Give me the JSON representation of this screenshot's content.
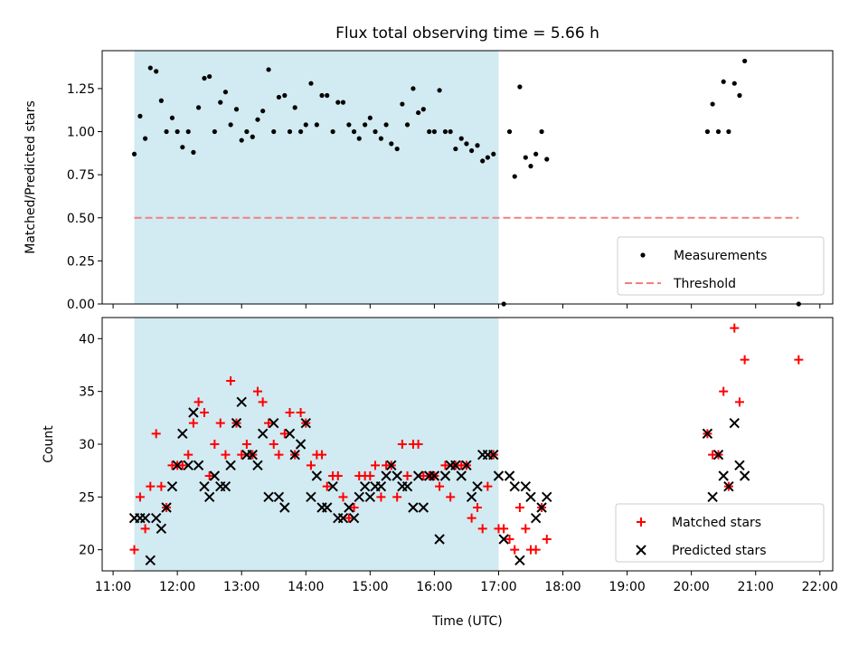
{
  "figure": {
    "title": "Flux total observing time = 5.66 h",
    "xlabel": "Time (UTC)",
    "x_tick_labels": [
      "11:00",
      "12:00",
      "13:00",
      "14:00",
      "15:00",
      "16:00",
      "17:00",
      "18:00",
      "19:00",
      "20:00",
      "21:00",
      "22:00"
    ],
    "shade_color": "#add8e6"
  },
  "chart_data": [
    {
      "type": "scatter",
      "ylabel": "Matched/Predicted stars",
      "xlim": [
        10.83,
        22.2
      ],
      "ylim": [
        0,
        1.47
      ],
      "x_ticks": [
        11,
        12,
        13,
        14,
        15,
        16,
        17,
        18,
        19,
        20,
        21,
        22
      ],
      "y_ticks": [
        0,
        0.25,
        0.5,
        0.75,
        1.0,
        1.25
      ],
      "y_tick_labels": [
        "0.00",
        "0.25",
        "0.50",
        "0.75",
        "1.00",
        "1.25"
      ],
      "shaded_interval": [
        11.33,
        17.0
      ],
      "legend": {
        "position": "lower-right",
        "entries": [
          "Measurements",
          "Threshold"
        ]
      },
      "series": [
        {
          "name": "Measurements",
          "marker": "dot",
          "color": "#000000",
          "x": [
            11.33,
            11.42,
            11.5,
            11.58,
            11.67,
            11.75,
            11.83,
            11.92,
            12.0,
            12.08,
            12.17,
            12.25,
            12.33,
            12.42,
            12.5,
            12.58,
            12.67,
            12.75,
            12.83,
            12.92,
            13.0,
            13.08,
            13.17,
            13.25,
            13.33,
            13.42,
            13.5,
            13.58,
            13.67,
            13.75,
            13.83,
            13.92,
            14.0,
            14.08,
            14.17,
            14.25,
            14.33,
            14.42,
            14.5,
            14.58,
            14.67,
            14.75,
            14.83,
            14.92,
            15.0,
            15.08,
            15.17,
            15.25,
            15.33,
            15.42,
            15.5,
            15.58,
            15.67,
            15.75,
            15.83,
            15.92,
            16.0,
            16.08,
            16.17,
            16.25,
            16.33,
            16.42,
            16.5,
            16.58,
            16.67,
            16.75,
            16.83,
            16.92,
            17.08,
            17.17,
            17.25,
            17.33,
            17.42,
            17.5,
            17.58,
            17.67,
            17.75,
            20.25,
            20.33,
            20.42,
            20.5,
            20.58,
            20.67,
            20.75,
            20.83,
            21.67
          ],
          "y": [
            0.87,
            1.09,
            0.96,
            1.37,
            1.35,
            1.18,
            1.0,
            1.08,
            1.0,
            0.91,
            1.0,
            0.88,
            1.14,
            1.31,
            1.32,
            1.0,
            1.17,
            1.23,
            1.04,
            1.13,
            0.95,
            1.0,
            0.97,
            1.07,
            1.12,
            1.36,
            1.0,
            1.2,
            1.21,
            1.0,
            1.14,
            1.0,
            1.04,
            1.28,
            1.04,
            1.21,
            1.21,
            1.0,
            1.17,
            1.17,
            1.04,
            1.0,
            0.96,
            1.04,
            1.08,
            1.0,
            0.96,
            1.04,
            0.93,
            0.9,
            1.16,
            1.04,
            1.25,
            1.11,
            1.13,
            1.0,
            1.0,
            1.24,
            1.0,
            1.0,
            0.9,
            0.96,
            0.93,
            0.89,
            0.92,
            0.83,
            0.85,
            0.87,
            0.0,
            1.0,
            0.74,
            1.26,
            0.85,
            0.8,
            0.87,
            1.0,
            0.84,
            1.0,
            1.16,
            1.0,
            1.29,
            1.0,
            1.28,
            1.21,
            1.41,
            0.0
          ]
        },
        {
          "name": "Threshold",
          "marker": "dashed-line",
          "color": "#f08080",
          "x": [
            11.33,
            21.67
          ],
          "y": [
            0.5,
            0.5
          ]
        }
      ]
    },
    {
      "type": "scatter",
      "ylabel": "Count",
      "xlim": [
        10.83,
        22.2
      ],
      "ylim": [
        18,
        42
      ],
      "x_ticks": [
        11,
        12,
        13,
        14,
        15,
        16,
        17,
        18,
        19,
        20,
        21,
        22
      ],
      "y_ticks": [
        20,
        25,
        30,
        35,
        40
      ],
      "y_tick_labels": [
        "20",
        "25",
        "30",
        "35",
        "40"
      ],
      "shaded_interval": [
        11.33,
        17.0
      ],
      "legend": {
        "position": "lower-right",
        "entries": [
          "Matched stars",
          "Predicted stars"
        ]
      },
      "series": [
        {
          "name": "Matched stars",
          "marker": "plus",
          "color": "#ff0000",
          "x": [
            11.33,
            11.42,
            11.5,
            11.58,
            11.67,
            11.75,
            11.83,
            11.92,
            12.0,
            12.08,
            12.17,
            12.25,
            12.33,
            12.42,
            12.5,
            12.58,
            12.67,
            12.75,
            12.83,
            12.92,
            13.0,
            13.08,
            13.17,
            13.25,
            13.33,
            13.42,
            13.5,
            13.58,
            13.67,
            13.75,
            13.83,
            13.92,
            14.0,
            14.08,
            14.17,
            14.25,
            14.33,
            14.42,
            14.5,
            14.58,
            14.67,
            14.75,
            14.83,
            14.92,
            15.0,
            15.08,
            15.17,
            15.25,
            15.33,
            15.42,
            15.5,
            15.58,
            15.67,
            15.75,
            15.83,
            15.92,
            16.0,
            16.08,
            16.17,
            16.25,
            16.33,
            16.42,
            16.5,
            16.58,
            16.67,
            16.75,
            16.83,
            16.92,
            17.0,
            17.08,
            17.17,
            17.25,
            17.33,
            17.42,
            17.5,
            17.58,
            17.67,
            17.75,
            20.25,
            20.33,
            20.42,
            20.5,
            20.58,
            20.67,
            20.75,
            20.83,
            21.67
          ],
          "y": [
            20,
            25,
            22,
            26,
            31,
            26,
            24,
            28,
            28,
            28,
            29,
            32,
            34,
            33,
            27,
            30,
            32,
            29,
            36,
            32,
            29,
            30,
            29,
            35,
            34,
            32,
            30,
            29,
            31,
            33,
            29,
            33,
            32,
            28,
            29,
            29,
            26,
            27,
            27,
            25,
            23,
            24,
            27,
            27,
            27,
            28,
            25,
            28,
            28,
            25,
            30,
            27,
            30,
            30,
            27,
            27,
            27,
            26,
            28,
            25,
            28,
            28,
            28,
            23,
            24,
            22,
            26,
            29,
            22,
            22,
            21,
            20,
            24,
            22,
            20,
            20,
            24,
            21,
            31,
            29,
            29,
            35,
            26,
            41,
            34,
            38,
            38
          ]
        },
        {
          "name": "Predicted stars",
          "marker": "x",
          "color": "#000000",
          "x": [
            11.33,
            11.42,
            11.5,
            11.58,
            11.67,
            11.75,
            11.83,
            11.92,
            12.0,
            12.08,
            12.17,
            12.25,
            12.33,
            12.42,
            12.5,
            12.58,
            12.67,
            12.75,
            12.83,
            12.92,
            13.0,
            13.08,
            13.17,
            13.25,
            13.33,
            13.42,
            13.5,
            13.58,
            13.67,
            13.75,
            13.83,
            13.92,
            14.0,
            14.08,
            14.17,
            14.25,
            14.33,
            14.42,
            14.5,
            14.58,
            14.67,
            14.75,
            14.83,
            14.92,
            15.0,
            15.08,
            15.17,
            15.25,
            15.33,
            15.42,
            15.5,
            15.58,
            15.67,
            15.75,
            15.83,
            15.92,
            16.0,
            16.08,
            16.17,
            16.25,
            16.33,
            16.42,
            16.5,
            16.58,
            16.67,
            16.75,
            16.83,
            16.92,
            17.0,
            17.08,
            17.17,
            17.25,
            17.33,
            17.42,
            17.5,
            17.58,
            17.67,
            17.75,
            20.25,
            20.33,
            20.42,
            20.5,
            20.58,
            20.67,
            20.75,
            20.83
          ],
          "y": [
            23,
            23,
            23,
            19,
            23,
            22,
            24,
            26,
            28,
            31,
            28,
            33,
            28,
            26,
            25,
            27,
            26,
            26,
            28,
            32,
            34,
            29,
            29,
            28,
            31,
            25,
            32,
            25,
            24,
            31,
            29,
            30,
            32,
            25,
            27,
            24,
            24,
            26,
            23,
            23,
            24,
            23,
            25,
            26,
            25,
            26,
            26,
            27,
            28,
            27,
            26,
            26,
            24,
            27,
            24,
            27,
            27,
            21,
            27,
            28,
            28,
            27,
            28,
            25,
            26,
            29,
            29,
            29,
            27,
            21,
            27,
            26,
            19,
            26,
            25,
            23,
            24,
            25,
            31,
            25,
            29,
            27,
            26,
            32,
            28,
            27
          ]
        }
      ]
    }
  ]
}
